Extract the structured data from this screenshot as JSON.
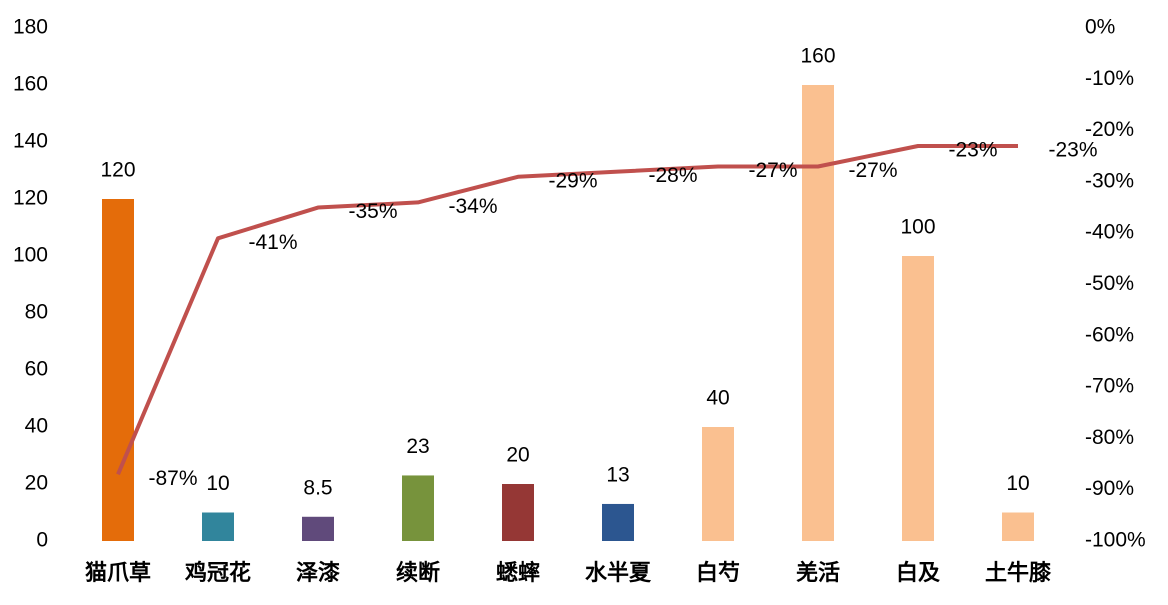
{
  "chart_data": {
    "type": "combo",
    "categories": [
      "猫爪草",
      "鸡冠花",
      "泽漆",
      "续断",
      "蟋蟀",
      "水半夏",
      "白芍",
      "羌活",
      "白及",
      "土牛膝"
    ],
    "ylim": [
      0,
      180
    ],
    "yticks": [
      0,
      20,
      40,
      60,
      80,
      100,
      120,
      140,
      160,
      180
    ],
    "y2lim": [
      -100,
      0
    ],
    "y2ticks": [
      {
        "value": -100,
        "label": "-100%"
      },
      {
        "value": -90,
        "label": "-90%"
      },
      {
        "value": -80,
        "label": "-80%"
      },
      {
        "value": -70,
        "label": "-70%"
      },
      {
        "value": -60,
        "label": "-60%"
      },
      {
        "value": -50,
        "label": "-50%"
      },
      {
        "value": -40,
        "label": "-40%"
      },
      {
        "value": -30,
        "label": "-30%"
      },
      {
        "value": -20,
        "label": "-20%"
      },
      {
        "value": -10,
        "label": "-10%"
      },
      {
        "value": 0,
        "label": "0%"
      }
    ],
    "series": [
      {
        "type": "bar",
        "values": [
          120,
          10,
          8.5,
          23,
          20,
          13,
          40,
          160,
          100,
          10
        ],
        "colors": [
          "#e46c0a",
          "#31859c",
          "#604a7b",
          "#77933c",
          "#953735",
          "#2c5690",
          "#fac090",
          "#fac090",
          "#fac090",
          "#fac090"
        ]
      },
      {
        "type": "line",
        "axis": "y2",
        "color": "#c0504d",
        "values": [
          -87,
          -41,
          -35,
          -34,
          -29,
          -28,
          -27,
          -27,
          -23,
          -23
        ],
        "value_labels": [
          "-87%",
          "-41%",
          "-35%",
          "-34%",
          "-29%",
          "-28%",
          "-27%",
          "-27%",
          "-23%",
          "-23%"
        ]
      }
    ]
  }
}
